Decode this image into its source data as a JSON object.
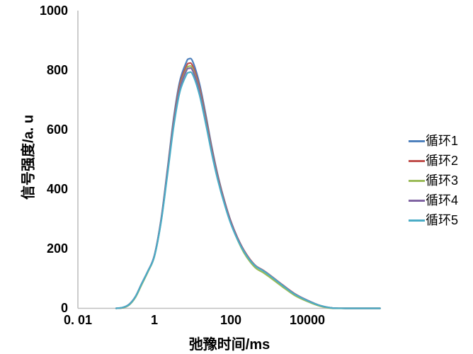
{
  "chart_data": {
    "type": "line",
    "title": "",
    "xlabel": "弛豫时间/ms",
    "ylabel": "信号强度/a. u",
    "x_scale": "log",
    "xlim": [
      0.01,
      1000000
    ],
    "ylim": [
      0,
      1000
    ],
    "grid": false,
    "legend_position": "right",
    "axis_color": "#bfbfbf",
    "x_ticks": [
      {
        "value": 0.01,
        "label": "0. 01"
      },
      {
        "value": 1,
        "label": "1"
      },
      {
        "value": 100,
        "label": "100"
      },
      {
        "value": 10000,
        "label": "10000"
      }
    ],
    "y_ticks": [
      {
        "value": 0,
        "label": "0"
      },
      {
        "value": 200,
        "label": "200"
      },
      {
        "value": 400,
        "label": "400"
      },
      {
        "value": 600,
        "label": "600"
      },
      {
        "value": 800,
        "label": "800"
      },
      {
        "value": 1000,
        "label": "1000"
      }
    ],
    "x": [
      0.1,
      0.15,
      0.22,
      0.32,
      0.46,
      0.68,
      1,
      1.5,
      2.2,
      3.2,
      4.6,
      6.8,
      8,
      10,
      15,
      22,
      32,
      46,
      68,
      100,
      150,
      220,
      320,
      460,
      680,
      1000,
      2200,
      4600,
      10000,
      22000,
      46000,
      100000,
      800000
    ],
    "series": [
      {
        "name": "循环1",
        "color": "#4F81BD",
        "values": [
          0,
          2,
          12,
          38,
          80,
          125,
          178,
          300,
          468,
          640,
          762,
          826,
          838,
          830,
          757,
          652,
          540,
          446,
          362,
          293,
          237,
          195,
          163,
          141,
          128,
          113,
          79,
          49,
          27,
          9,
          1,
          0,
          0
        ]
      },
      {
        "name": "循环2",
        "color": "#C0504D",
        "values": [
          0,
          2,
          12,
          38,
          79,
          124,
          176,
          296,
          461,
          630,
          750,
          812,
          823,
          815,
          744,
          642,
          533,
          441,
          359,
          291,
          236,
          195,
          164,
          142,
          129,
          114,
          80,
          50,
          27,
          9,
          1,
          0,
          0
        ]
      },
      {
        "name": "循环3",
        "color": "#9BBB59",
        "values": [
          0,
          2,
          12,
          37,
          78,
          123,
          174,
          293,
          456,
          623,
          741,
          802,
          813,
          805,
          735,
          634,
          526,
          435,
          354,
          286,
          230,
          187,
          156,
          134,
          121,
          106,
          73,
          44,
          23,
          7,
          0,
          0,
          0
        ]
      },
      {
        "name": "循环4",
        "color": "#8064A2",
        "values": [
          0,
          3,
          14,
          40,
          82,
          126,
          176,
          294,
          456,
          621,
          737,
          797,
          806,
          799,
          731,
          630,
          524,
          434,
          354,
          287,
          233,
          193,
          162,
          141,
          128,
          113,
          79,
          49,
          27,
          9,
          1,
          0,
          0
        ]
      },
      {
        "name": "循环5",
        "color": "#4BACC6",
        "values": [
          0,
          3,
          13,
          39,
          81,
          125,
          174,
          290,
          449,
          611,
          725,
          783,
          792,
          786,
          719,
          621,
          517,
          429,
          350,
          284,
          231,
          191,
          161,
          140,
          127,
          112,
          78,
          48,
          26,
          9,
          1,
          0,
          0
        ]
      }
    ]
  }
}
